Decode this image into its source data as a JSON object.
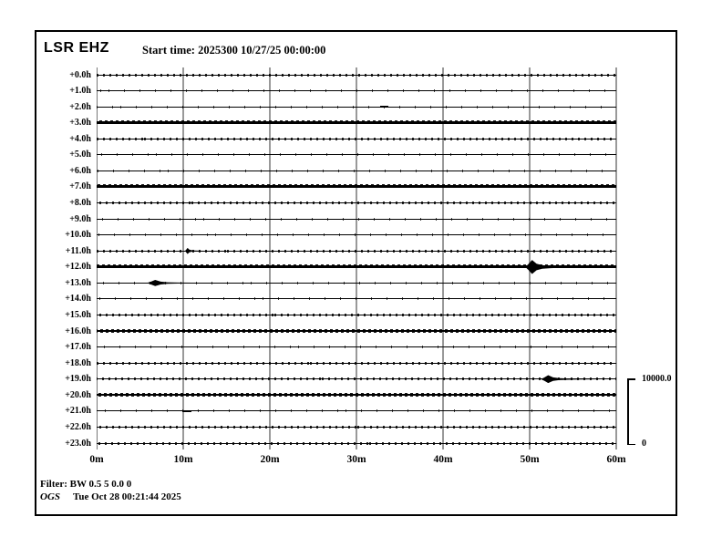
{
  "header": {
    "station": "LSR EHZ",
    "start_time_label": "Start time: 2025300 10/27/25 00:00:00"
  },
  "footer": {
    "filter": "Filter: BW 0.5 5 0.0 0",
    "agency": "OGS",
    "generated": "Tue Oct 28 00:21:44 2025"
  },
  "scale_bar": {
    "max": "10000.0",
    "min": "0"
  },
  "colors": {
    "trace": "#000000",
    "grid": "#999999",
    "background": "#ffffff"
  },
  "chart_data": {
    "type": "line",
    "subtype": "helicorder-seismogram",
    "title": "LSR EHZ",
    "start_time": "2025300 10/27/25 00:00:00",
    "x_tick_labels": [
      "0m",
      "10m",
      "20m",
      "30m",
      "40m",
      "50m",
      "60m"
    ],
    "x_minutes_range": [
      0,
      60
    ],
    "amplitude_scale": {
      "max": 10000.0,
      "min": 0
    },
    "legend_position": "right-bottom-bracket",
    "grid": "vertical-10min",
    "rows": [
      {
        "label": "+0.0h",
        "activity": "medium",
        "events": []
      },
      {
        "label": "+1.0h",
        "activity": "sparse",
        "events": []
      },
      {
        "label": "+2.0h",
        "activity": "sparse",
        "events": [
          {
            "t_min": 32.7,
            "dur_min": 1.0,
            "amp": "tiny"
          }
        ]
      },
      {
        "label": "+3.0h",
        "activity": "high",
        "events": []
      },
      {
        "label": "+4.0h",
        "activity": "medium",
        "events": []
      },
      {
        "label": "+5.0h",
        "activity": "sparse",
        "events": []
      },
      {
        "label": "+6.0h",
        "activity": "sparse",
        "events": []
      },
      {
        "label": "+7.0h",
        "activity": "high",
        "events": []
      },
      {
        "label": "+8.0h",
        "activity": "medium",
        "events": []
      },
      {
        "label": "+9.0h",
        "activity": "sparse",
        "events": []
      },
      {
        "label": "+10.0h",
        "activity": "sparse",
        "events": []
      },
      {
        "label": "+11.0h",
        "activity": "medium",
        "events": [
          {
            "t_min": 10.2,
            "dur_min": 2.5,
            "amp": "small"
          }
        ]
      },
      {
        "label": "+12.0h",
        "activity": "high",
        "events": [
          {
            "t_min": 49.5,
            "dur_min": 6.5,
            "amp": "large"
          }
        ]
      },
      {
        "label": "+13.0h",
        "activity": "sparse",
        "events": [
          {
            "t_min": 5.8,
            "dur_min": 8.0,
            "amp": "small"
          }
        ]
      },
      {
        "label": "+14.0h",
        "activity": "sparse",
        "events": []
      },
      {
        "label": "+15.0h",
        "activity": "medium",
        "events": []
      },
      {
        "label": "+16.0h",
        "activity": "high",
        "events": []
      },
      {
        "label": "+17.0h",
        "activity": "sparse",
        "events": []
      },
      {
        "label": "+18.0h",
        "activity": "medium",
        "events": []
      },
      {
        "label": "+19.0h",
        "activity": "medium",
        "events": [
          {
            "t_min": 51.3,
            "dur_min": 7.0,
            "amp": "medium"
          }
        ]
      },
      {
        "label": "+20.0h",
        "activity": "high",
        "events": []
      },
      {
        "label": "+21.0h",
        "activity": "sparse",
        "events": [
          {
            "t_min": 9.9,
            "dur_min": 1.0,
            "amp": "tiny"
          }
        ]
      },
      {
        "label": "+22.0h",
        "activity": "medium",
        "events": []
      },
      {
        "label": "+23.0h",
        "activity": "medium",
        "events": []
      }
    ]
  }
}
